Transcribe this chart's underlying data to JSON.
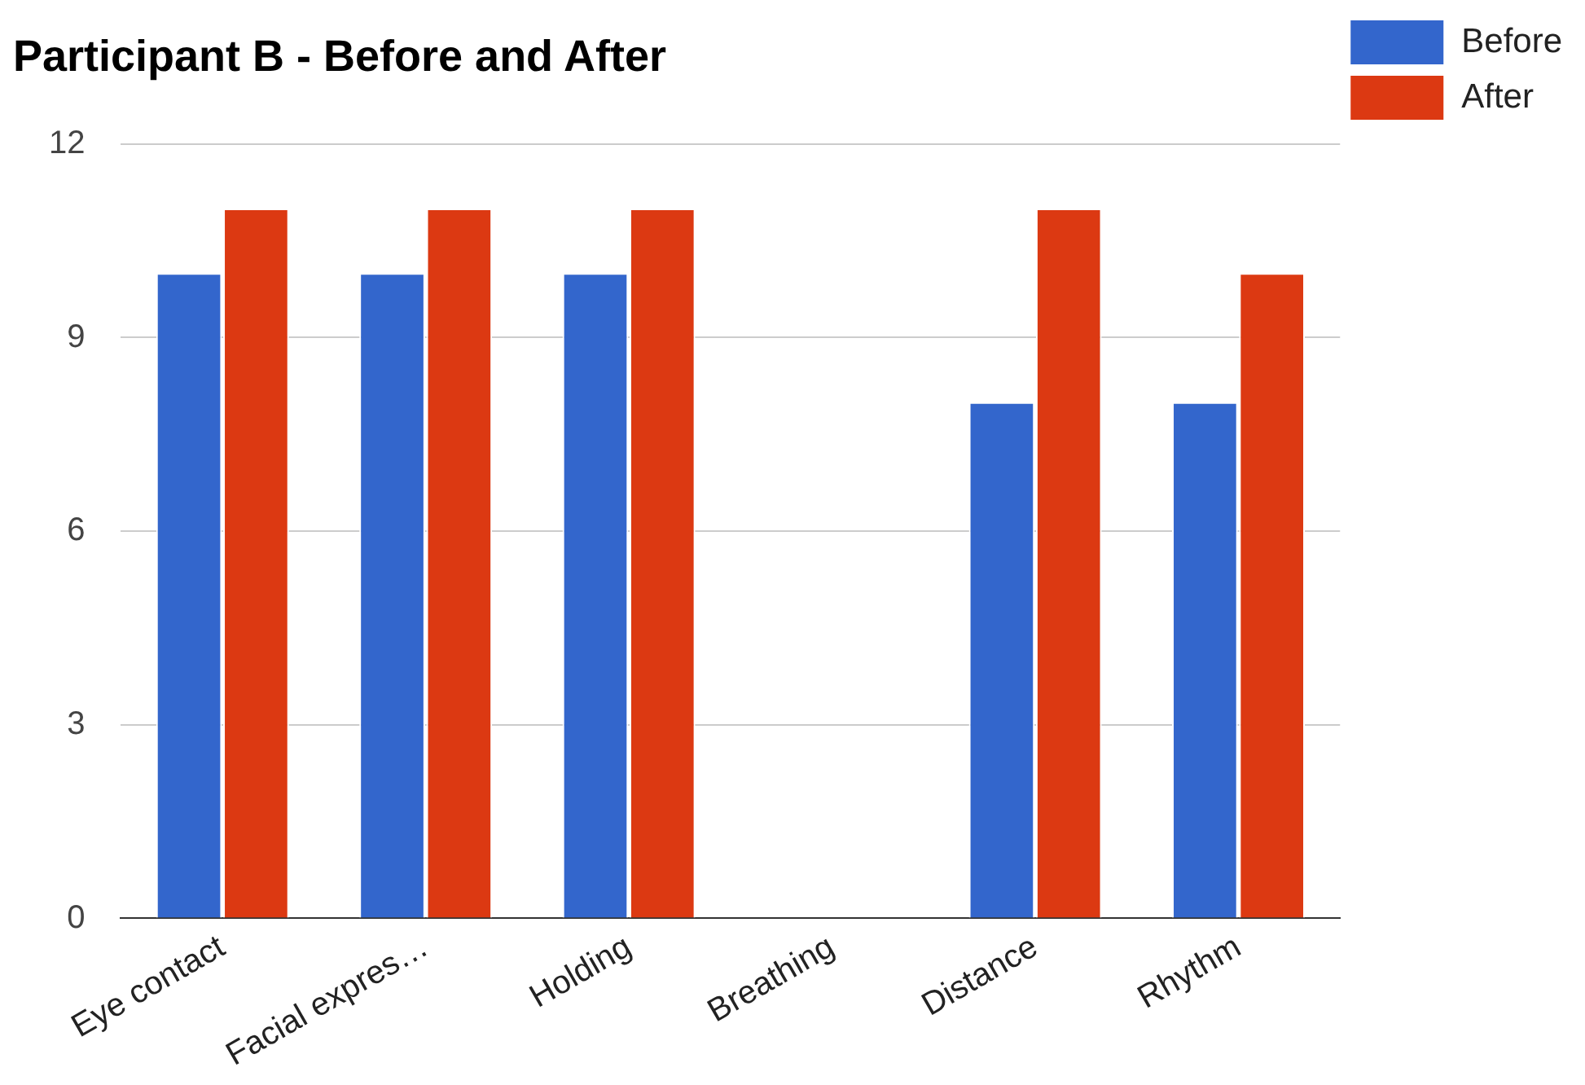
{
  "chart_data": {
    "type": "bar",
    "title": "Participant B - Before and After",
    "categories": [
      "Eye contact",
      "Facial expres…",
      "Holding",
      "Breathing",
      "Distance",
      "Rhythm"
    ],
    "series": [
      {
        "name": "Before",
        "color": "#3366cc",
        "values": [
          10,
          10,
          10,
          0,
          8,
          8
        ]
      },
      {
        "name": "After",
        "color": "#dc3912",
        "values": [
          11,
          11,
          11,
          0,
          11,
          10
        ]
      }
    ],
    "ylim": [
      0,
      12
    ],
    "yticks": [
      0,
      3,
      6,
      9,
      12
    ],
    "grid": "y",
    "legend": "top right"
  }
}
